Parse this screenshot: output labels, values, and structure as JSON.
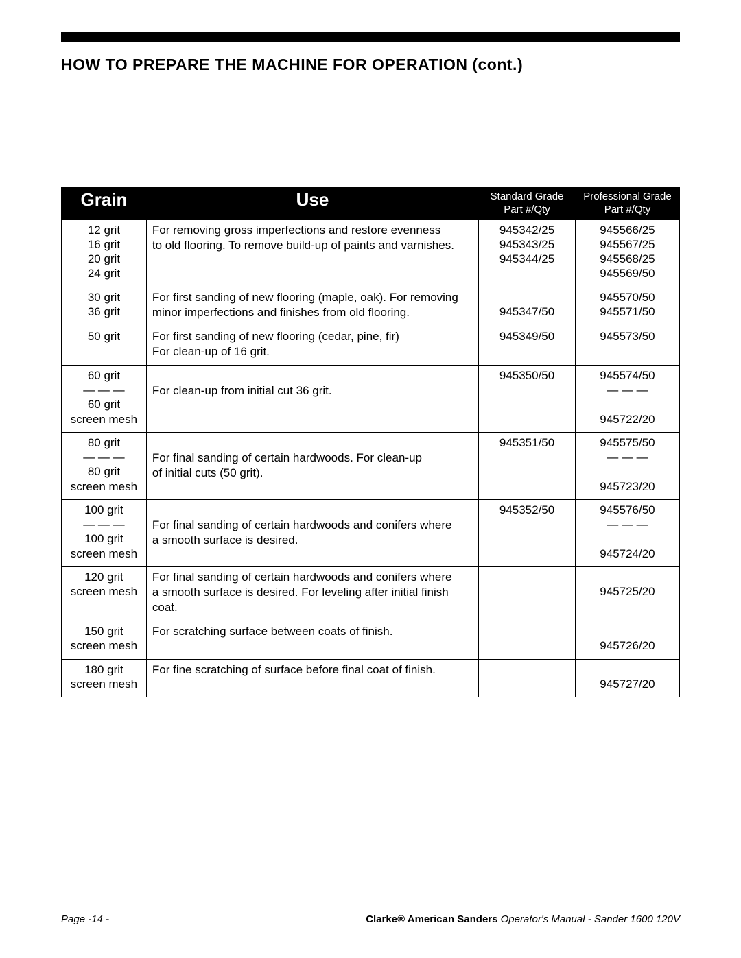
{
  "heading": "HOW TO PREPARE THE MACHINE FOR OPERATION (cont.)",
  "headers": {
    "grain": "Grain",
    "use": "Use",
    "std_l1": "Standard Grade",
    "std_l2": "Part #/Qty",
    "pro_l1": "Professional  Grade",
    "pro_l2": "Part #/Qty"
  },
  "rows": [
    {
      "grain": "12 grit\n16 grit\n20 grit\n24 grit",
      "use": "For removing gross imperfections and restore evenness\nto old flooring.  To remove build-up of paints and varnishes.",
      "std": "945342/25\n945343/25\n945344/25",
      "pro": "945566/25\n945567/25\n945568/25\n945569/50"
    },
    {
      "grain": "30 grit\n36 grit",
      "use": "For first sanding of new flooring  (maple, oak).  For removing\nminor imperfections and finishes from old flooring.",
      "std": "\n945347/50",
      "pro": "945570/50\n945571/50"
    },
    {
      "grain": "50 grit",
      "use": "For first sanding of new flooring (cedar, pine, fir)\nFor clean-up of 16 grit.",
      "std": "945349/50",
      "pro": "945573/50"
    },
    {
      "grain": "60 grit\n—  —  —\n60 grit\nscreen mesh",
      "use": "\nFor clean-up from initial cut 36 grit.",
      "std": "945350/50",
      "pro": "945574/50\n—  —  —\n\n945722/20"
    },
    {
      "grain": "80 grit\n—  —  —\n80 grit\nscreen mesh",
      "use": "\nFor final sanding of certain hardwoods.  For clean-up\nof initial cuts (50 grit).",
      "std": "945351/50",
      "pro": "945575/50\n—  —  —\n\n945723/20"
    },
    {
      "grain": "100 grit\n—  —  —\n100 grit\nscreen mesh",
      "use": "\nFor final sanding of certain hardwoods and conifers where\na smooth surface is desired.",
      "std": "945352/50",
      "pro": "945576/50\n—  —  —\n\n945724/20"
    },
    {
      "grain": "120 grit\nscreen mesh",
      "use": "For final sanding of certain hardwoods and conifers where\na smooth surface is desired.  For leveling after initial finish\ncoat.",
      "std": "",
      "pro": "\n945725/20"
    },
    {
      "grain": "150 grit\nscreen mesh",
      "use": "For scratching surface between coats of finish.",
      "std": "",
      "pro": "\n945726/20"
    },
    {
      "grain": "180 grit\nscreen mesh",
      "use": "For fine scratching of surface before final coat of finish.",
      "std": "",
      "pro": "\n945727/20"
    }
  ],
  "footer": {
    "page": "Page -14 -",
    "brand": "Clarke",
    "reg": "®",
    "mid": "  American Sanders ",
    "tail": "Operator's Manual - Sander 1600 120V"
  }
}
